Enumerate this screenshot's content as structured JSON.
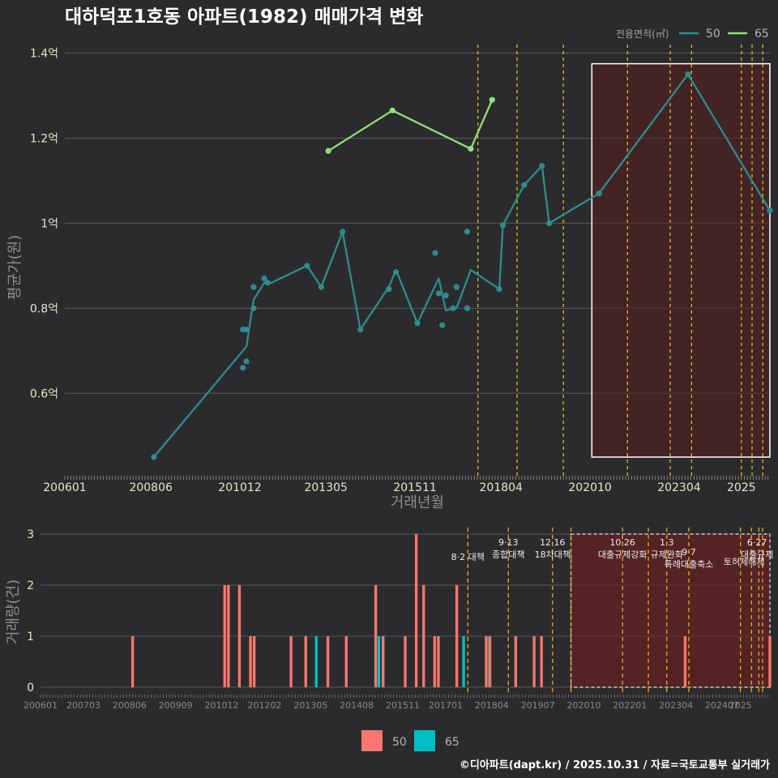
{
  "chart_data": [
    {
      "type": "line",
      "title": "대하덕포1호동 아파트(1982) 매매가격 변화",
      "xlabel": "거래년월",
      "ylabel": "평균가(원)",
      "x_tick_labels": [
        "200601",
        "200806",
        "201012",
        "201305",
        "201511",
        "201804",
        "202010",
        "202304",
        "2025"
      ],
      "x_range": [
        2006.0,
        2025.8
      ],
      "y_tick_labels": [
        "0.6억",
        "0.8억",
        "1억",
        "1.2억",
        "1.4억"
      ],
      "y_tick_values": [
        0.6,
        0.8,
        1.0,
        1.2,
        1.4
      ],
      "ylim": [
        0.41,
        1.42
      ],
      "legend_title": "전용면적(㎡)",
      "series": [
        {
          "name": "50",
          "color": "#2e8c8c",
          "line": [
            [
              2008.5,
              0.45
            ],
            [
              2011.1,
              0.71
            ],
            [
              2011.3,
              0.82
            ],
            [
              2011.6,
              0.86
            ],
            [
              2011.8,
              0.86
            ],
            [
              2012.8,
              0.9
            ],
            [
              2013.2,
              0.85
            ],
            [
              2013.8,
              0.98
            ],
            [
              2014.3,
              0.75
            ],
            [
              2015.1,
              0.85
            ],
            [
              2015.3,
              0.89
            ],
            [
              2015.9,
              0.765
            ],
            [
              2016.5,
              0.87
            ],
            [
              2016.7,
              0.795
            ],
            [
              2017.0,
              0.8
            ],
            [
              2017.4,
              0.89
            ],
            [
              2018.2,
              0.845
            ],
            [
              2018.3,
              0.995
            ],
            [
              2018.9,
              1.09
            ],
            [
              2019.4,
              1.135
            ],
            [
              2019.6,
              1.0
            ],
            [
              2021.0,
              1.07
            ],
            [
              2023.5,
              1.35
            ],
            [
              2025.8,
              1.03
            ]
          ],
          "points": [
            [
              2008.5,
              0.45
            ],
            [
              2011.0,
              0.66
            ],
            [
              2011.0,
              0.75
            ],
            [
              2011.1,
              0.675
            ],
            [
              2011.1,
              0.75
            ],
            [
              2011.3,
              0.8
            ],
            [
              2011.3,
              0.85
            ],
            [
              2011.6,
              0.87
            ],
            [
              2011.7,
              0.86
            ],
            [
              2012.8,
              0.9
            ],
            [
              2013.2,
              0.85
            ],
            [
              2013.8,
              0.98
            ],
            [
              2014.3,
              0.75
            ],
            [
              2015.1,
              0.845
            ],
            [
              2015.3,
              0.885
            ],
            [
              2015.9,
              0.765
            ],
            [
              2016.4,
              0.93
            ],
            [
              2016.5,
              0.835
            ],
            [
              2016.6,
              0.76
            ],
            [
              2016.7,
              0.83
            ],
            [
              2016.9,
              0.8
            ],
            [
              2017.0,
              0.85
            ],
            [
              2017.3,
              0.98
            ],
            [
              2017.3,
              0.8
            ],
            [
              2018.2,
              0.845
            ],
            [
              2018.3,
              0.995
            ],
            [
              2018.9,
              1.09
            ],
            [
              2019.4,
              1.135
            ],
            [
              2019.6,
              1.0
            ],
            [
              2021.0,
              1.07
            ],
            [
              2023.5,
              1.35
            ],
            [
              2025.8,
              1.03
            ]
          ]
        },
        {
          "name": "65",
          "color": "#90e07a",
          "line": [
            [
              2013.4,
              1.17
            ],
            [
              2015.2,
              1.265
            ],
            [
              2017.4,
              1.175
            ],
            [
              2018.0,
              1.29
            ]
          ],
          "points": [
            [
              2013.4,
              1.17
            ],
            [
              2015.2,
              1.265
            ],
            [
              2017.4,
              1.175
            ],
            [
              2018.0,
              1.29
            ]
          ]
        }
      ],
      "policy_lines_x": [
        2017.6,
        2018.7,
        2020.0,
        2021.8,
        2023.0,
        2023.6,
        2025.0,
        2025.3,
        2025.6
      ],
      "highlight_x_range": [
        2020.8,
        2025.8
      ],
      "highlight_y_range": [
        0.45,
        1.375
      ]
    },
    {
      "type": "bar",
      "ylabel": "거래량(건)",
      "x_tick_labels": [
        "200601",
        "200703",
        "200806",
        "200909",
        "201012",
        "201202",
        "201305",
        "201408",
        "201511",
        "201701",
        "201804",
        "201907",
        "202010",
        "202201",
        "202304",
        "202407",
        "2025"
      ],
      "x_range": [
        2006.0,
        2025.8
      ],
      "y_tick_labels": [
        "0",
        "1",
        "2",
        "3"
      ],
      "ylim": [
        0,
        3
      ],
      "legend": [
        "50",
        "65"
      ],
      "colors": {
        "50": "#f8766d",
        "65": "#00bfc4"
      },
      "bars": [
        {
          "x": 2008.5,
          "v": 1,
          "s": "50"
        },
        {
          "x": 2011.0,
          "v": 2,
          "s": "50"
        },
        {
          "x": 2011.1,
          "v": 2,
          "s": "50"
        },
        {
          "x": 2011.4,
          "v": 2,
          "s": "50"
        },
        {
          "x": 2011.7,
          "v": 1,
          "s": "50"
        },
        {
          "x": 2011.8,
          "v": 1,
          "s": "50"
        },
        {
          "x": 2012.8,
          "v": 1,
          "s": "50"
        },
        {
          "x": 2013.2,
          "v": 1,
          "s": "50"
        },
        {
          "x": 2013.4,
          "v": 1,
          "s": "65"
        },
        {
          "x": 2013.8,
          "v": 1,
          "s": "50"
        },
        {
          "x": 2014.3,
          "v": 1,
          "s": "50"
        },
        {
          "x": 2015.1,
          "v": 2,
          "s": "50"
        },
        {
          "x": 2015.1,
          "v": 1,
          "s": "65"
        },
        {
          "x": 2015.3,
          "v": 1,
          "s": "50"
        },
        {
          "x": 2015.9,
          "v": 1,
          "s": "50"
        },
        {
          "x": 2016.2,
          "v": 3,
          "s": "50"
        },
        {
          "x": 2016.4,
          "v": 2,
          "s": "50"
        },
        {
          "x": 2016.7,
          "v": 1,
          "s": "50"
        },
        {
          "x": 2016.8,
          "v": 1,
          "s": "50"
        },
        {
          "x": 2017.3,
          "v": 2,
          "s": "50"
        },
        {
          "x": 2017.4,
          "v": 1,
          "s": "65"
        },
        {
          "x": 2018.1,
          "v": 1,
          "s": "50"
        },
        {
          "x": 2018.1,
          "v": 1,
          "s": "65"
        },
        {
          "x": 2018.2,
          "v": 1,
          "s": "50"
        },
        {
          "x": 2018.9,
          "v": 1,
          "s": "50"
        },
        {
          "x": 2019.4,
          "v": 1,
          "s": "50"
        },
        {
          "x": 2019.6,
          "v": 1,
          "s": "50"
        },
        {
          "x": 2023.5,
          "v": 1,
          "s": "50"
        },
        {
          "x": 2025.8,
          "v": 1,
          "s": "50"
        }
      ],
      "policy_lines_x": [
        2017.6,
        2018.7,
        2019.9,
        2020.4,
        2021.8,
        2022.5,
        2023.0,
        2023.6,
        2025.0,
        2025.3,
        2025.5,
        2025.6
      ],
      "highlight_x_range": [
        2020.4,
        2025.8
      ],
      "annotations": [
        {
          "x": 2017.6,
          "lines": [
            "8·2 대책"
          ],
          "row": 1.5
        },
        {
          "x": 2018.7,
          "lines": [
            "9·13",
            "종합대책"
          ],
          "row": 0
        },
        {
          "x": 2019.9,
          "lines": [
            "12·16",
            "18차대책"
          ],
          "row": 0
        },
        {
          "x": 2021.8,
          "lines": [
            "10·26",
            "대출규제강화"
          ],
          "row": 0
        },
        {
          "x": 2023.0,
          "lines": [
            "1·3",
            "규제완화"
          ],
          "row": 0
        },
        {
          "x": 2023.6,
          "lines": [
            "9·7",
            "특례대출축소"
          ],
          "row": 1
        },
        {
          "x": 2025.1,
          "lines": [
            "토허제해제"
          ],
          "row": 2
        },
        {
          "x": 2025.45,
          "lines": [
            "6·27",
            "대출규제"
          ],
          "row": 0
        }
      ]
    }
  ],
  "caption": "©디아파트(dapt.kr) / 2025.10.31 / 자료=국토교통부 실거래가"
}
